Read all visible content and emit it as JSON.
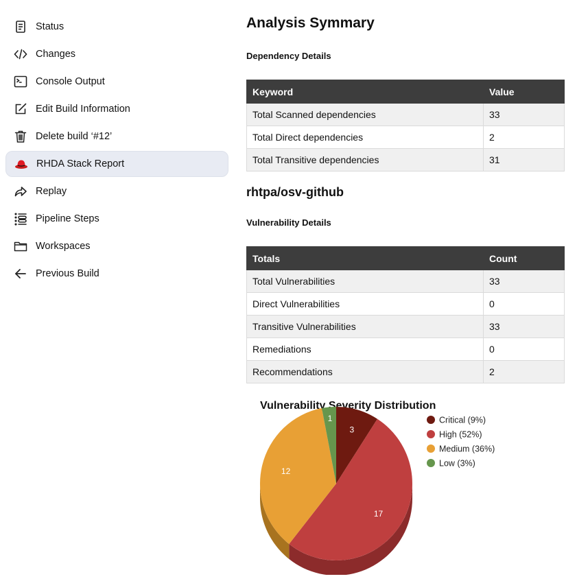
{
  "sidebar": {
    "items": [
      {
        "label": "Status",
        "icon": "document-icon"
      },
      {
        "label": "Changes",
        "icon": "code-icon"
      },
      {
        "label": "Console Output",
        "icon": "terminal-icon"
      },
      {
        "label": "Edit Build Information",
        "icon": "edit-icon"
      },
      {
        "label": "Delete build ‘#12’",
        "icon": "trash-icon"
      },
      {
        "label": "RHDA Stack Report",
        "icon": "redhat-icon"
      },
      {
        "label": "Replay",
        "icon": "replay-icon"
      },
      {
        "label": "Pipeline Steps",
        "icon": "list-icon"
      },
      {
        "label": "Workspaces",
        "icon": "folder-icon"
      },
      {
        "label": "Previous Build",
        "icon": "arrow-left-icon"
      }
    ]
  },
  "main": {
    "title": "Analysis Symmary",
    "dependency": {
      "heading": "Dependency Details",
      "columns": [
        "Keyword",
        "Value"
      ],
      "rows": [
        [
          "Total Scanned dependencies",
          "33"
        ],
        [
          "Total Direct dependencies",
          "2"
        ],
        [
          "Total Transitive dependencies",
          "31"
        ]
      ]
    },
    "provider": "rhtpa/osv-github",
    "vulnerability": {
      "heading": "Vulnerability Details",
      "columns": [
        "Totals",
        "Count"
      ],
      "rows": [
        [
          "Total Vulnerabilities",
          "33"
        ],
        [
          "Direct Vulnerabilities",
          "0"
        ],
        [
          "Transitive Vulnerabilities",
          "33"
        ],
        [
          "Remediations",
          "0"
        ],
        [
          "Recommendations",
          "2"
        ]
      ]
    }
  },
  "chart_data": {
    "type": "pie",
    "title": "Vulnerability Severity Distribution",
    "categories": [
      "Critical",
      "High",
      "Medium",
      "Low"
    ],
    "values": [
      3,
      17,
      12,
      1
    ],
    "legend": [
      "Critical (9%)",
      "High (52%)",
      "Medium (36%)",
      "Low (3%)"
    ],
    "colors": [
      "#6e1a10",
      "#bf3f3f",
      "#e8a035",
      "#66964d"
    ],
    "side_colors": [
      "#4a120b",
      "#8c2b2b",
      "#a8731f",
      "#4b6e38"
    ],
    "legend_placement": "right"
  }
}
